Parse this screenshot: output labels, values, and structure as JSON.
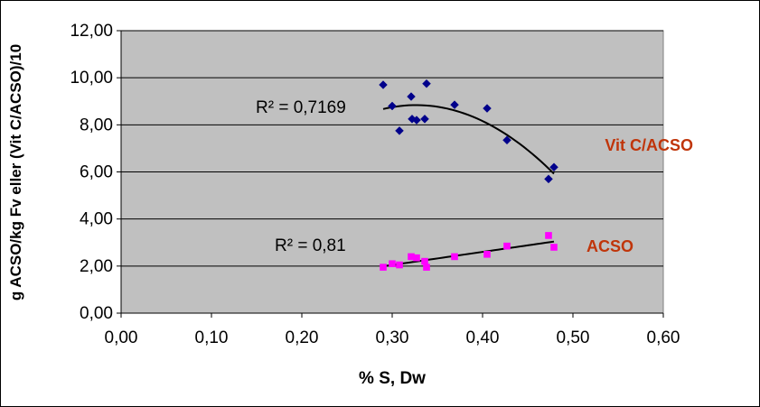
{
  "chart_data": {
    "type": "scatter",
    "title": "",
    "xlabel": "% S, Dw",
    "ylabel": "g ACSO/kg Fv eller (Vit C/ACSO)/10",
    "xlim": [
      0,
      0.6
    ],
    "ylim": [
      0,
      12
    ],
    "x_ticks": [
      0,
      0.1,
      0.2,
      0.3,
      0.4,
      0.5,
      0.6
    ],
    "y_ticks": [
      0,
      2,
      4,
      6,
      8,
      10,
      12
    ],
    "x_tick_labels": [
      "0,00",
      "0,10",
      "0,20",
      "0,30",
      "0,40",
      "0,50",
      "0,60"
    ],
    "y_tick_labels": [
      "0,00",
      "2,00",
      "4,00",
      "6,00",
      "8,00",
      "10,00",
      "12,00"
    ],
    "grid": "horizontal",
    "series": [
      {
        "name": "Vit C/ACSO",
        "marker": "diamond",
        "color": "#00008B",
        "label_color": "#C0350A",
        "r2_label": "R² = 0,7169",
        "trendline": "polynomial",
        "x": [
          0.29,
          0.3,
          0.308,
          0.321,
          0.322,
          0.327,
          0.336,
          0.338,
          0.369,
          0.405,
          0.427,
          0.473,
          0.479
        ],
        "y": [
          9.7,
          8.8,
          7.75,
          9.2,
          8.25,
          8.2,
          8.25,
          9.75,
          8.85,
          8.7,
          7.35,
          5.7,
          6.2
        ]
      },
      {
        "name": "ACSO",
        "marker": "square",
        "color": "#FF00FF",
        "label_color": "#C0350A",
        "r2_label": "R² = 0,81",
        "trendline": "linear",
        "x": [
          0.29,
          0.3,
          0.308,
          0.321,
          0.327,
          0.336,
          0.338,
          0.369,
          0.405,
          0.427,
          0.473,
          0.479
        ],
        "y": [
          1.95,
          2.1,
          2.05,
          2.4,
          2.35,
          2.2,
          1.95,
          2.4,
          2.5,
          2.85,
          3.3,
          2.8
        ]
      }
    ]
  }
}
